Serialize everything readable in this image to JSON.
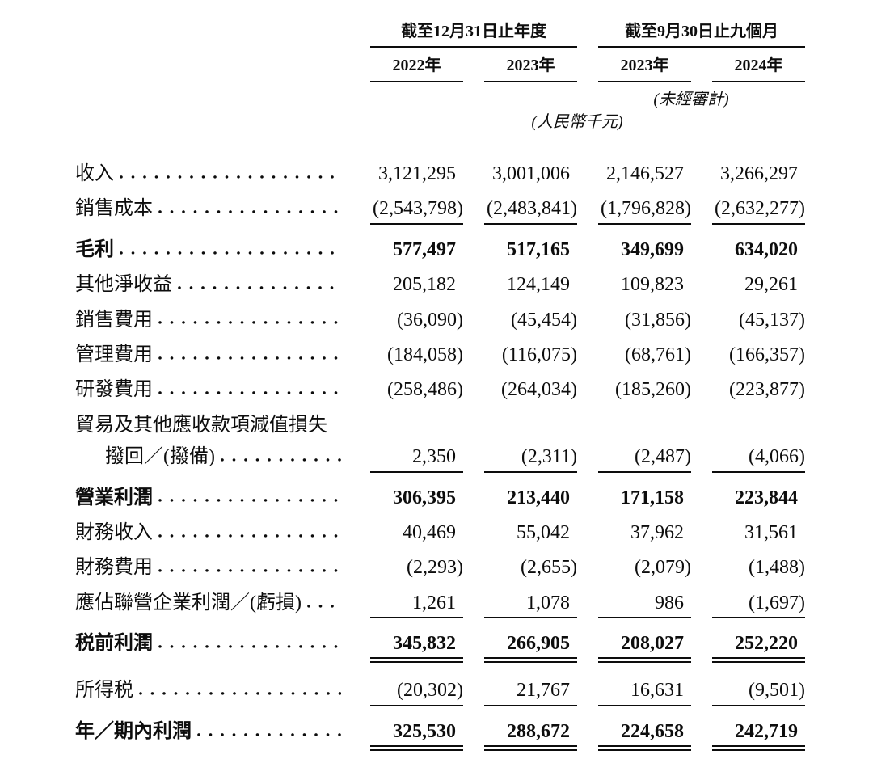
{
  "table": {
    "col_groups": [
      {
        "title": "截至12月31日止年度",
        "cols": [
          "2022年",
          "2023年"
        ]
      },
      {
        "title": "截至9月30日止九個月",
        "cols": [
          "2023年",
          "2024年"
        ]
      }
    ],
    "unaudited_note": "(未經審計)",
    "currency_note": "(人民幣千元)",
    "rows": [
      {
        "label": "收入",
        "values": [
          "3,121,295",
          "3,001,006",
          "2,146,527",
          "3,266,297"
        ]
      },
      {
        "label": "銷售成本",
        "values": [
          "(2,543,798)",
          "(2,483,841)",
          "(1,796,828)",
          "(2,632,277)"
        ]
      },
      {
        "label": "毛利",
        "values": [
          "577,497",
          "517,165",
          "349,699",
          "634,020"
        ]
      },
      {
        "label": "其他淨收益",
        "values": [
          "205,182",
          "124,149",
          "109,823",
          "29,261"
        ]
      },
      {
        "label": "銷售費用",
        "values": [
          "(36,090)",
          "(45,454)",
          "(31,856)",
          "(45,137)"
        ]
      },
      {
        "label": "管理費用",
        "values": [
          "(184,058)",
          "(116,075)",
          "(68,761)",
          "(166,357)"
        ]
      },
      {
        "label": "研發費用",
        "values": [
          "(258,486)",
          "(264,034)",
          "(185,260)",
          "(223,877)"
        ]
      },
      {
        "label": "貿易及其他應收款項減值損失",
        "values": [
          "",
          "",
          "",
          ""
        ]
      },
      {
        "label": "撥回／(撥備)",
        "values": [
          "2,350",
          "(2,311)",
          "(2,487)",
          "(4,066)"
        ]
      },
      {
        "label": "營業利潤",
        "values": [
          "306,395",
          "213,440",
          "171,158",
          "223,844"
        ]
      },
      {
        "label": "財務收入",
        "values": [
          "40,469",
          "55,042",
          "37,962",
          "31,561"
        ]
      },
      {
        "label": "財務費用",
        "values": [
          "(2,293)",
          "(2,655)",
          "(2,079)",
          "(1,488)"
        ]
      },
      {
        "label": "應佔聯營企業利潤／(虧損)",
        "values": [
          "1,261",
          "1,078",
          "986",
          "(1,697)"
        ]
      },
      {
        "label": "税前利潤",
        "values": [
          "345,832",
          "266,905",
          "208,027",
          "252,220"
        ]
      },
      {
        "label": "所得税",
        "values": [
          "(20,302)",
          "21,767",
          "16,631",
          "(9,501)"
        ]
      },
      {
        "label": "年／期內利潤",
        "values": [
          "325,530",
          "288,672",
          "224,658",
          "242,719"
        ]
      }
    ]
  }
}
